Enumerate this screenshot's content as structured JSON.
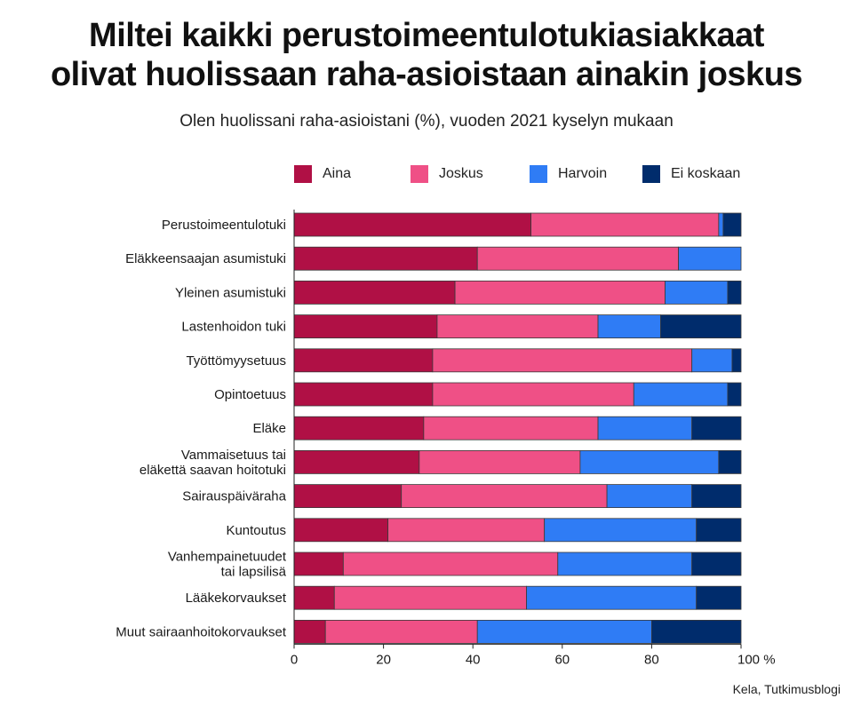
{
  "title_lines": [
    "Miltei kaikki perustoimeentulotukiasiakkaat",
    "olivat huolissaan raha-asioistaan ainakin joskus"
  ],
  "subtitle": "Olen huolissani raha-asioistani (%), vuoden 2021 kyselyn mukaan",
  "source": "Kela, Tutkimusblogi",
  "colors": {
    "Aina": "#b01045",
    "Joskus": "#ef5086",
    "Harvoin": "#2f7cf5",
    "Ei koskaan": "#002c6c"
  },
  "chart_data": {
    "type": "bar",
    "orientation": "horizontal",
    "stacked": true,
    "title": "Miltei kaikki perustoimeentulotukiasiakkaat olivat huolissaan raha-asioistaan ainakin joskus",
    "subtitle": "Olen huolissani raha-asioistani (%), vuoden 2021 kyselyn mukaan",
    "categories": [
      "Perustoimeentulotuki",
      "Eläkkeensaajan asumistuki",
      "Yleinen asumistuki",
      "Lastenhoidon tuki",
      "Työttömyysetuus",
      "Opintoetuus",
      "Eläke",
      "Vammaisetuus tai\neläkettä saavan hoitotuki",
      "Sairauspäiväraha",
      "Kuntoutus",
      "Vanhempainetuudet\ntai lapsilisä",
      "Lääkekorvaukset",
      "Muut sairaanhoitokorvaukset"
    ],
    "series": [
      {
        "name": "Aina",
        "values": [
          53,
          41,
          36,
          32,
          31,
          31,
          29,
          28,
          24,
          21,
          11,
          9,
          7
        ]
      },
      {
        "name": "Joskus",
        "values": [
          42,
          45,
          47,
          36,
          58,
          45,
          39,
          36,
          46,
          35,
          48,
          43,
          34
        ]
      },
      {
        "name": "Harvoin",
        "values": [
          1,
          14,
          14,
          14,
          9,
          21,
          21,
          31,
          19,
          34,
          30,
          38,
          39
        ]
      },
      {
        "name": "Ei koskaan",
        "values": [
          4,
          0,
          3,
          18,
          2,
          3,
          11,
          5,
          11,
          10,
          11,
          10,
          20
        ]
      }
    ],
    "x_ticks": [
      "0",
      "20",
      "40",
      "60",
      "80",
      "100 %"
    ],
    "xlim": [
      0,
      100
    ],
    "legend_position": "top",
    "grid": false
  }
}
